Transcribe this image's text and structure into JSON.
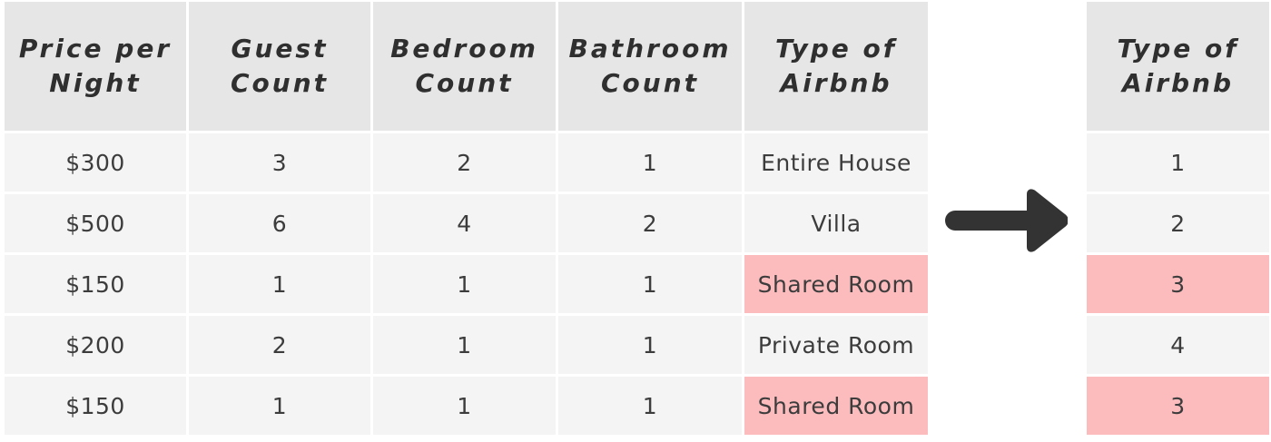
{
  "main_table": {
    "headers": [
      "Price per Night",
      "Guest Count",
      "Bedroom Count",
      "Bathroom Count",
      "Type of Airbnb"
    ],
    "rows": [
      [
        "$300",
        "3",
        "2",
        "1",
        "Entire House"
      ],
      [
        "$500",
        "6",
        "4",
        "2",
        "Villa"
      ],
      [
        "$150",
        "1",
        "1",
        "1",
        "Shared Room"
      ],
      [
        "$200",
        "2",
        "1",
        "1",
        "Private Room"
      ],
      [
        "$150",
        "1",
        "1",
        "1",
        "Shared Room"
      ]
    ]
  },
  "encoded_table": {
    "header": "Type of Airbnb",
    "values": [
      "1",
      "2",
      "3",
      "4",
      "3"
    ]
  },
  "highlight_value": "Shared Room",
  "colors": {
    "header_bg": "#e6e6e6",
    "cell_bg": "#f4f4f4",
    "highlight_bg": "#fcbcbe",
    "arrow": "#333333",
    "text": "#3c3c3c"
  },
  "icons": {
    "transform_arrow": "arrow-right-icon"
  }
}
